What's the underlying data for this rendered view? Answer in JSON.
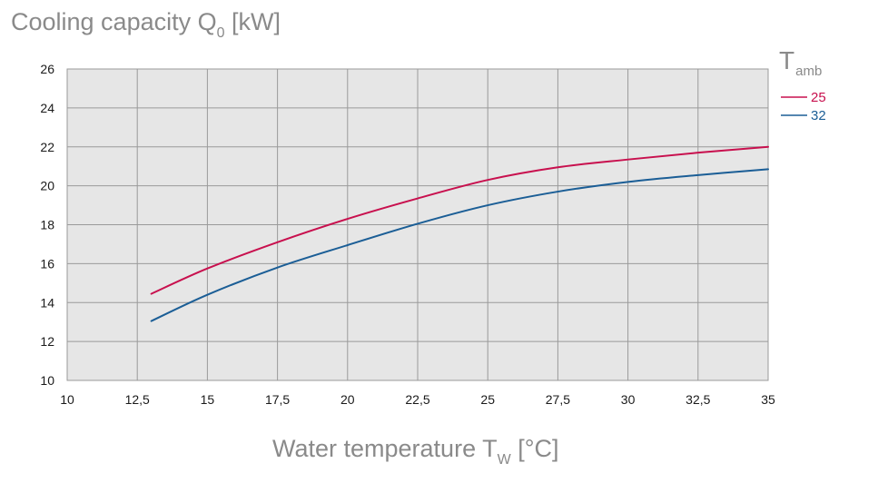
{
  "chart_data": {
    "type": "line",
    "title": {
      "prefix": "Cooling capacity Q",
      "subscript": "0",
      "suffix": " [kW]"
    },
    "xlabel": {
      "prefix": "Water temperature T",
      "subscript": "W",
      "suffix": " [°C]"
    },
    "xlim": [
      10,
      35
    ],
    "ylim": [
      10,
      26
    ],
    "x_ticks": [
      10,
      12.5,
      15,
      17.5,
      20,
      22.5,
      25,
      27.5,
      30,
      32.5,
      35
    ],
    "x_tick_labels": [
      "10",
      "12,5",
      "15",
      "17,5",
      "20",
      "22,5",
      "25",
      "27,5",
      "30",
      "32,5",
      "35"
    ],
    "y_ticks": [
      10,
      12,
      14,
      16,
      18,
      20,
      22,
      24,
      26
    ],
    "y_tick_labels": [
      "10",
      "12",
      "14",
      "16",
      "18",
      "20",
      "22",
      "24",
      "26"
    ],
    "grid": true,
    "legend": {
      "title_prefix": "T",
      "title_subscript": "amb",
      "placement": "top-right outside"
    },
    "series": [
      {
        "name": "25",
        "color": "#c8104e",
        "x": [
          13,
          15,
          17.5,
          20,
          22.5,
          25,
          27.5,
          30,
          32.5,
          35
        ],
        "y": [
          14.45,
          15.75,
          17.1,
          18.3,
          19.35,
          20.3,
          20.95,
          21.35,
          21.7,
          22.0
        ]
      },
      {
        "name": "32",
        "color": "#1b5e96",
        "x": [
          13,
          15,
          17.5,
          20,
          22.5,
          25,
          27.5,
          30,
          32.5,
          35
        ],
        "y": [
          13.05,
          14.4,
          15.8,
          16.95,
          18.05,
          19.0,
          19.7,
          20.2,
          20.55,
          20.85
        ]
      }
    ]
  },
  "colors": {
    "plot_background": "#e6e6e6",
    "grid": "#9a9a9a",
    "axis_title": "#8a8a8a",
    "tick_label": "#1a1a1a"
  }
}
